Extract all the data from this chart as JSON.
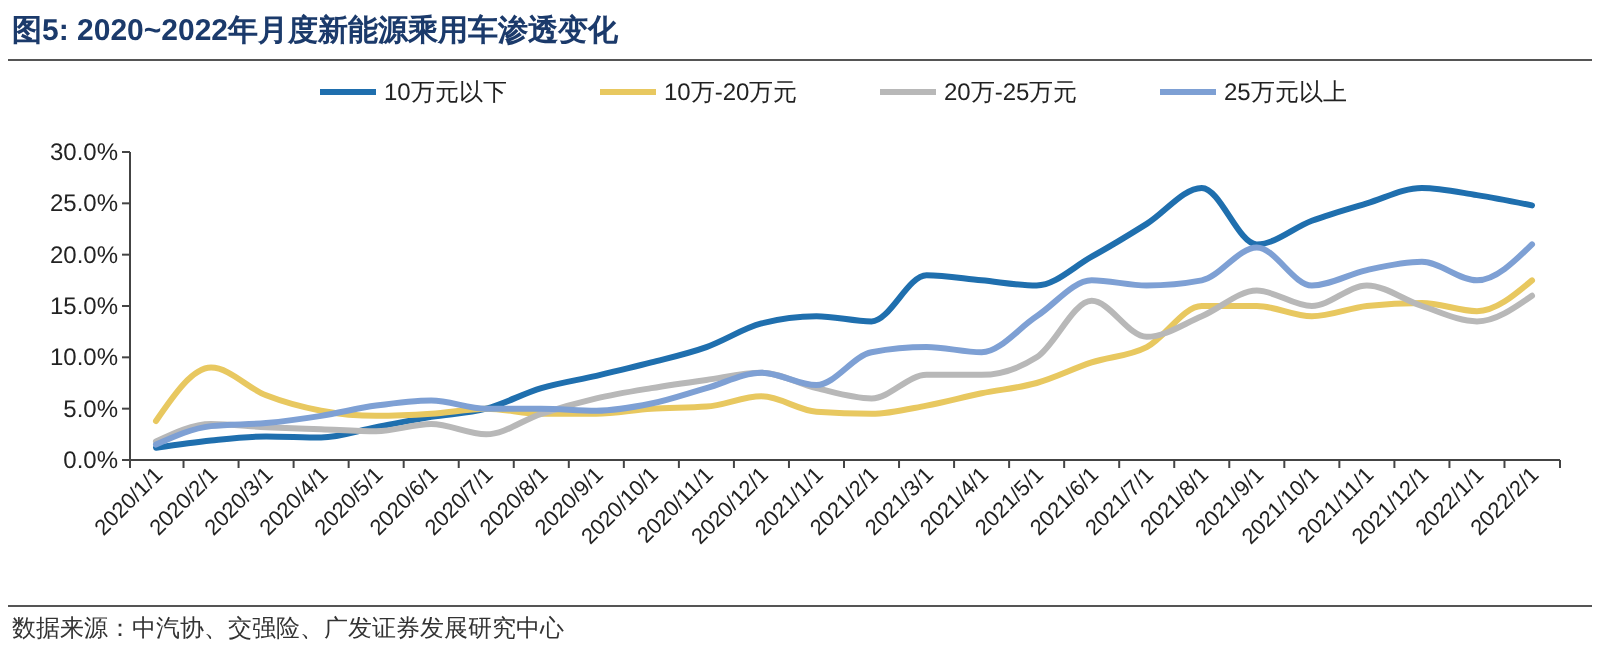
{
  "chart_data": {
    "type": "line",
    "title": "图5:  2020~2022年月度新能源乘用车渗透变化",
    "categories": [
      "2020/1/1",
      "2020/2/1",
      "2020/3/1",
      "2020/4/1",
      "2020/5/1",
      "2020/6/1",
      "2020/7/1",
      "2020/8/1",
      "2020/9/1",
      "2020/10/1",
      "2020/11/1",
      "2020/12/1",
      "2021/1/1",
      "2021/2/1",
      "2021/3/1",
      "2021/4/1",
      "2021/5/1",
      "2021/6/1",
      "2021/7/1",
      "2021/8/1",
      "2021/9/1",
      "2021/10/1",
      "2021/11/1",
      "2021/12/1",
      "2022/1/1",
      "2022/2/1"
    ],
    "series": [
      {
        "name": "10万元以下",
        "color": "#1f6fae",
        "values": [
          1.2,
          1.9,
          2.3,
          2.2,
          3.2,
          4.2,
          5.0,
          7.0,
          8.2,
          9.5,
          11.0,
          13.3,
          14.0,
          13.5,
          18.0,
          17.5,
          17.0,
          19.8,
          23.0,
          26.5,
          21.0,
          23.3,
          25.0,
          26.5,
          25.8,
          24.8
        ]
      },
      {
        "name": "10万-20万元",
        "color": "#e8c860",
        "values": [
          3.8,
          9.0,
          6.3,
          4.8,
          4.3,
          4.5,
          5.0,
          4.5,
          4.5,
          5.0,
          5.2,
          6.2,
          4.7,
          4.5,
          5.3,
          6.5,
          7.5,
          9.5,
          11.0,
          15.0,
          15.0,
          14.0,
          15.0,
          15.3,
          14.5,
          17.5
        ]
      },
      {
        "name": "20万-25万元",
        "color": "#b8b8b8",
        "values": [
          1.8,
          3.5,
          3.2,
          3.0,
          2.8,
          3.5,
          2.5,
          4.5,
          6.0,
          7.0,
          7.8,
          8.5,
          7.0,
          6.0,
          8.3,
          8.3,
          10.0,
          15.5,
          12.0,
          14.0,
          16.5,
          15.0,
          17.0,
          15.0,
          13.5,
          16.0
        ]
      },
      {
        "name": "25万元以上",
        "color": "#7ea0d4",
        "values": [
          1.5,
          3.3,
          3.6,
          4.3,
          5.3,
          5.8,
          5.0,
          5.0,
          4.8,
          5.5,
          7.0,
          8.5,
          7.3,
          10.5,
          11.0,
          10.5,
          14.0,
          17.5,
          17.0,
          17.5,
          20.7,
          17.0,
          18.5,
          19.3,
          17.5,
          21.0
        ]
      }
    ],
    "ylim": [
      0,
      30
    ],
    "yticks": [
      {
        "value": 0,
        "label": "0.0%"
      },
      {
        "value": 5,
        "label": "5.0%"
      },
      {
        "value": 10,
        "label": "10.0%"
      },
      {
        "value": 15,
        "label": "15.0%"
      },
      {
        "value": 20,
        "label": "20.0%"
      },
      {
        "value": 25,
        "label": "25.0%"
      },
      {
        "value": 30,
        "label": "30.0%"
      }
    ],
    "legend": "top",
    "grid": false,
    "line_style": "solid",
    "marker": "none",
    "annotations": [
      "数据来源：中汽协、交强险、广发证券发展研究中心"
    ]
  }
}
